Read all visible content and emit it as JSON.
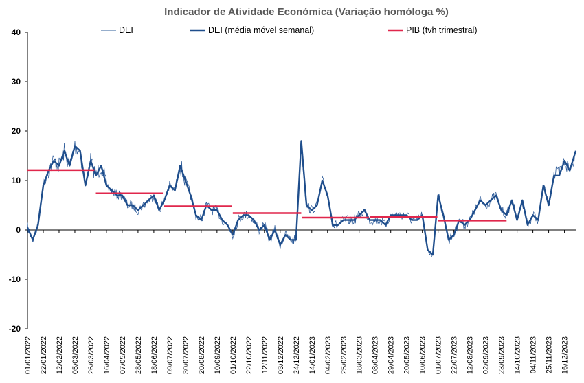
{
  "chart_data": {
    "type": "line",
    "title": "Indicador de Atividade Económica (Variação homóloga %)",
    "xlabel": "",
    "ylabel": "",
    "ylim": [
      -20,
      40
    ],
    "yticks": [
      -20,
      -10,
      0,
      10,
      20,
      30,
      40
    ],
    "xlim": [
      "2022-01-01",
      "2023-12-31"
    ],
    "x_tick_labels": [
      "01/01/2022",
      "22/01/2022",
      "12/02/2022",
      "05/03/2022",
      "26/03/2022",
      "16/04/2022",
      "07/05/2022",
      "28/05/2022",
      "18/06/2022",
      "09/07/2022",
      "30/07/2022",
      "20/08/2022",
      "10/09/2022",
      "01/10/2022",
      "22/10/2022",
      "12/11/2022",
      "03/12/2022",
      "24/12/2022",
      "14/01/2023",
      "04/02/2023",
      "25/02/2023",
      "18/03/2023",
      "08/04/2023",
      "29/04/2023",
      "20/05/2023",
      "10/06/2023",
      "01/07/2023",
      "22/07/2023",
      "12/08/2023",
      "02/09/2023",
      "23/09/2023",
      "14/10/2023",
      "04/11/2023",
      "25/11/2023",
      "16/12/2023"
    ],
    "legend_position": "top",
    "grid": false,
    "series": [
      {
        "name": "DEI",
        "style": "thin",
        "color": "#2e5c9a",
        "daily_noise": true,
        "x": [
          "2022-01-01",
          "2022-01-08",
          "2022-01-15",
          "2022-01-22",
          "2022-01-29",
          "2022-02-05",
          "2022-02-12",
          "2022-02-19",
          "2022-02-26",
          "2022-03-05",
          "2022-03-12",
          "2022-03-19",
          "2022-03-26",
          "2022-04-02",
          "2022-04-09",
          "2022-04-16",
          "2022-04-23",
          "2022-04-30",
          "2022-05-07",
          "2022-05-14",
          "2022-05-21",
          "2022-05-28",
          "2022-06-04",
          "2022-06-11",
          "2022-06-18",
          "2022-06-25",
          "2022-07-02",
          "2022-07-09",
          "2022-07-16",
          "2022-07-23",
          "2022-07-30",
          "2022-08-06",
          "2022-08-13",
          "2022-08-20",
          "2022-08-27",
          "2022-09-03",
          "2022-09-10",
          "2022-09-17",
          "2022-09-24",
          "2022-10-01",
          "2022-10-08",
          "2022-10-15",
          "2022-10-22",
          "2022-10-29",
          "2022-11-05",
          "2022-11-12",
          "2022-11-19",
          "2022-11-26",
          "2022-12-03",
          "2022-12-10",
          "2022-12-17",
          "2022-12-24",
          "2022-12-31",
          "2023-01-07",
          "2023-01-14",
          "2023-01-21",
          "2023-01-28",
          "2023-02-04",
          "2023-02-11",
          "2023-02-18",
          "2023-02-25",
          "2023-03-04",
          "2023-03-11",
          "2023-03-18",
          "2023-03-25",
          "2023-04-01",
          "2023-04-08",
          "2023-04-15",
          "2023-04-22",
          "2023-04-29",
          "2023-05-06",
          "2023-05-13",
          "2023-05-20",
          "2023-05-27",
          "2023-06-03",
          "2023-06-10",
          "2023-06-17",
          "2023-06-24",
          "2023-07-01",
          "2023-07-08",
          "2023-07-15",
          "2023-07-22",
          "2023-07-29",
          "2023-08-05",
          "2023-08-12",
          "2023-08-19",
          "2023-08-26",
          "2023-09-02",
          "2023-09-09",
          "2023-09-16",
          "2023-09-23",
          "2023-09-30",
          "2023-10-07",
          "2023-10-14",
          "2023-10-21",
          "2023-10-28",
          "2023-11-04",
          "2023-11-11",
          "2023-11-18",
          "2023-11-25",
          "2023-12-02",
          "2023-12-09",
          "2023-12-16",
          "2023-12-23",
          "2023-12-31"
        ],
        "values": [
          0.5,
          -2,
          1,
          9,
          12,
          14,
          13,
          16,
          13,
          17,
          16,
          9,
          14,
          11,
          13,
          9,
          8,
          7,
          7,
          5,
          5,
          4,
          5,
          6,
          7,
          4,
          6,
          9,
          8,
          13,
          10,
          7,
          3,
          2,
          5,
          4,
          4,
          2,
          1,
          -1,
          2,
          3,
          3,
          2,
          0,
          1,
          -2,
          0,
          -3,
          -1,
          -2,
          -2,
          18,
          5,
          4,
          5,
          10,
          7,
          1,
          1,
          2,
          2,
          2,
          3,
          4,
          2,
          2,
          2,
          1,
          3,
          3,
          3,
          3,
          2,
          2,
          3,
          -4,
          -5,
          7,
          3,
          -2,
          -1,
          2,
          1,
          2,
          4,
          6,
          5,
          6,
          7,
          4,
          3,
          6,
          2,
          6,
          1,
          3,
          2,
          9,
          5,
          11,
          11,
          14,
          12,
          16
        ]
      },
      {
        "name": "DEI (média móvel semanal)",
        "style": "thick",
        "color": "#1f4e8c",
        "x": [
          "2022-01-01",
          "2022-01-08",
          "2022-01-15",
          "2022-01-22",
          "2022-01-29",
          "2022-02-05",
          "2022-02-12",
          "2022-02-19",
          "2022-02-26",
          "2022-03-05",
          "2022-03-12",
          "2022-03-19",
          "2022-03-26",
          "2022-04-02",
          "2022-04-09",
          "2022-04-16",
          "2022-04-23",
          "2022-04-30",
          "2022-05-07",
          "2022-05-14",
          "2022-05-21",
          "2022-05-28",
          "2022-06-04",
          "2022-06-11",
          "2022-06-18",
          "2022-06-25",
          "2022-07-02",
          "2022-07-09",
          "2022-07-16",
          "2022-07-23",
          "2022-07-30",
          "2022-08-06",
          "2022-08-13",
          "2022-08-20",
          "2022-08-27",
          "2022-09-03",
          "2022-09-10",
          "2022-09-17",
          "2022-09-24",
          "2022-10-01",
          "2022-10-08",
          "2022-10-15",
          "2022-10-22",
          "2022-10-29",
          "2022-11-05",
          "2022-11-12",
          "2022-11-19",
          "2022-11-26",
          "2022-12-03",
          "2022-12-10",
          "2022-12-17",
          "2022-12-24",
          "2022-12-31",
          "2023-01-07",
          "2023-01-14",
          "2023-01-21",
          "2023-01-28",
          "2023-02-04",
          "2023-02-11",
          "2023-02-18",
          "2023-02-25",
          "2023-03-04",
          "2023-03-11",
          "2023-03-18",
          "2023-03-25",
          "2023-04-01",
          "2023-04-08",
          "2023-04-15",
          "2023-04-22",
          "2023-04-29",
          "2023-05-06",
          "2023-05-13",
          "2023-05-20",
          "2023-05-27",
          "2023-06-03",
          "2023-06-10",
          "2023-06-17",
          "2023-06-24",
          "2023-07-01",
          "2023-07-08",
          "2023-07-15",
          "2023-07-22",
          "2023-07-29",
          "2023-08-05",
          "2023-08-12",
          "2023-08-19",
          "2023-08-26",
          "2023-09-02",
          "2023-09-09",
          "2023-09-16",
          "2023-09-23",
          "2023-09-30",
          "2023-10-07",
          "2023-10-14",
          "2023-10-21",
          "2023-10-28",
          "2023-11-04",
          "2023-11-11",
          "2023-11-18",
          "2023-11-25",
          "2023-12-02",
          "2023-12-09",
          "2023-12-16",
          "2023-12-23",
          "2023-12-31"
        ],
        "values": [
          0.5,
          -2,
          1,
          9,
          12,
          14,
          13,
          16,
          13,
          17,
          16,
          9,
          14,
          11,
          13,
          9,
          8,
          7,
          7,
          5,
          5,
          4,
          5,
          6,
          7,
          4,
          6,
          9,
          8,
          13,
          10,
          7,
          3,
          2,
          5,
          4,
          4,
          2,
          1,
          -1,
          2,
          3,
          3,
          2,
          0,
          1,
          -2,
          0,
          -3,
          -1,
          -2,
          -2,
          18,
          5,
          4,
          5,
          10,
          7,
          1,
          1,
          2,
          2,
          2,
          3,
          4,
          2,
          2,
          2,
          1,
          3,
          3,
          3,
          3,
          2,
          2,
          3,
          -4,
          -5,
          7,
          3,
          -2,
          -1,
          2,
          1,
          2,
          4,
          6,
          5,
          6,
          7,
          4,
          3,
          6,
          2,
          6,
          1,
          3,
          2,
          9,
          5,
          11,
          11,
          14,
          12,
          16
        ]
      },
      {
        "name": "PIB (tvh trimestral)",
        "style": "step",
        "color": "#e0274c",
        "segments": [
          {
            "from": "2022-01-01",
            "to": "2022-03-31",
            "value": 12.1
          },
          {
            "from": "2022-04-01",
            "to": "2022-06-30",
            "value": 7.4
          },
          {
            "from": "2022-07-01",
            "to": "2022-09-30",
            "value": 4.8
          },
          {
            "from": "2022-10-01",
            "to": "2022-12-31",
            "value": 3.4
          },
          {
            "from": "2023-01-01",
            "to": "2023-03-31",
            "value": 2.5
          },
          {
            "from": "2023-04-01",
            "to": "2023-06-30",
            "value": 2.6
          },
          {
            "from": "2023-07-01",
            "to": "2023-09-30",
            "value": 1.9
          }
        ]
      }
    ]
  }
}
